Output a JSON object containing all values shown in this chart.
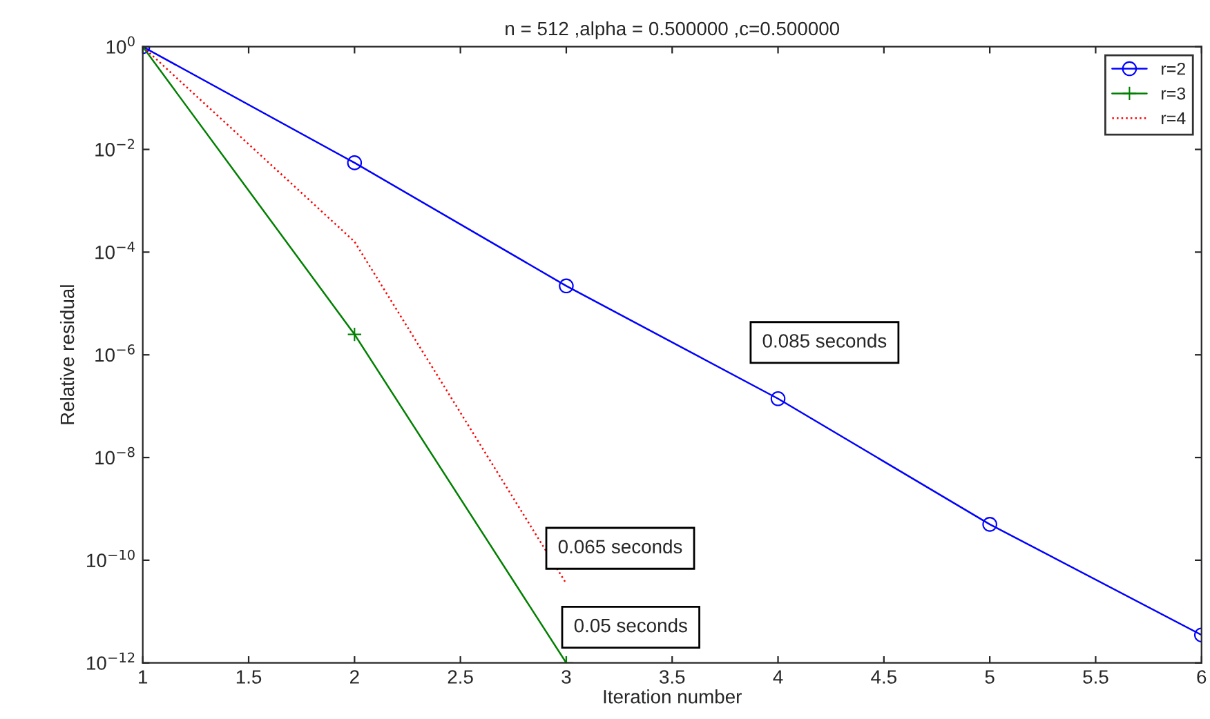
{
  "chart_data": {
    "type": "line",
    "title": "n = 512 ,alpha = 0.500000 ,c=0.500000",
    "xlabel": "Iteration number",
    "ylabel": "Relative residual",
    "log": "y",
    "series": [
      {
        "name": "r=2",
        "color": "#0000ff",
        "marker": "circle",
        "line_style": "solid",
        "x": [
          1,
          2,
          3,
          4,
          5,
          6
        ],
        "values": [
          1,
          0.0055,
          2.2e-05,
          1.4e-07,
          5e-10,
          3.5e-12
        ]
      },
      {
        "name": "r=3",
        "color": "#008000",
        "marker": "cross",
        "line_style": "solid",
        "x": [
          1,
          2,
          3
        ],
        "values": [
          1,
          2.5e-06,
          1e-12
        ]
      },
      {
        "name": "r=4",
        "color": "#ff0000",
        "marker": "none",
        "line_style": "dotted",
        "x": [
          1,
          2,
          3
        ],
        "values": [
          1,
          0.00016,
          3.5e-11
        ]
      }
    ],
    "xlim": [
      1,
      6
    ],
    "xticks": [
      1,
      1.5,
      2,
      2.5,
      3,
      3.5,
      4,
      4.5,
      5,
      5.5,
      6
    ],
    "ylim": [
      1e-12,
      1
    ],
    "yticks": [
      {
        "value": 1e-12,
        "label": "10$^{−12}$"
      },
      {
        "value": 1e-10,
        "label": "10$^{−10}$"
      },
      {
        "value": 1e-08,
        "label": "10$^{−8}$"
      },
      {
        "value": 1e-06,
        "label": "10$^{−6}$"
      },
      {
        "value": 0.0001,
        "label": "10$^{−4}$"
      },
      {
        "value": 0.01,
        "label": "10$^{−2}$"
      },
      {
        "value": 1,
        "label": "10$^{0}$"
      }
    ],
    "annotations": [
      "0.085 seconds",
      "0.065 seconds",
      "0.05 seconds"
    ],
    "grid": false,
    "legend": "top right"
  }
}
